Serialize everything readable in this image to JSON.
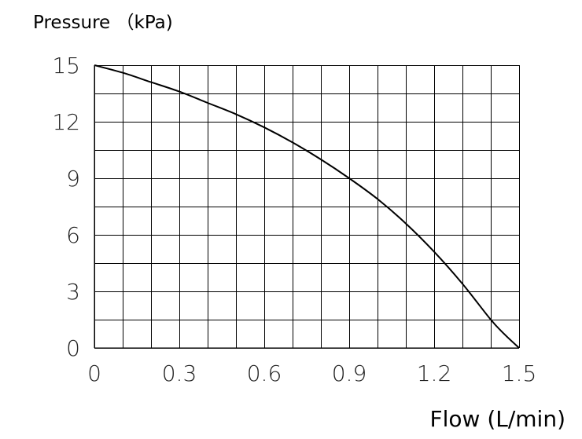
{
  "chart_data": {
    "type": "line",
    "title": "",
    "ylabel": "Pressure （kPa)",
    "xlabel": "Flow (L/min)",
    "xlim": [
      0,
      1.5
    ],
    "ylim": [
      0,
      15
    ],
    "x_ticks": [
      0,
      0.3,
      0.6,
      0.9,
      1.2,
      1.5
    ],
    "x_tick_labels": [
      "0",
      "0.3",
      "0.6",
      "0.9",
      "1.2",
      "1.5"
    ],
    "y_ticks": [
      0,
      3,
      6,
      9,
      12,
      15
    ],
    "y_tick_labels": [
      "0",
      "3",
      "6",
      "9",
      "12",
      "15"
    ],
    "x_grid_step": 0.1,
    "y_grid_step": 1.5,
    "grid": true,
    "legend": "none",
    "series": [
      {
        "x": [
          0,
          0.1,
          0.2,
          0.3,
          0.4,
          0.5,
          0.6,
          0.7,
          0.8,
          0.9,
          1.0,
          1.1,
          1.2,
          1.3,
          1.4,
          1.45,
          1.5
        ],
        "y": [
          15,
          14.6,
          14.1,
          13.6,
          13.0,
          12.4,
          11.7,
          10.9,
          10.0,
          9.0,
          7.9,
          6.6,
          5.1,
          3.4,
          1.5,
          0.7,
          0
        ]
      }
    ],
    "colors": {
      "line": "#000000",
      "grid": "#000000"
    }
  }
}
